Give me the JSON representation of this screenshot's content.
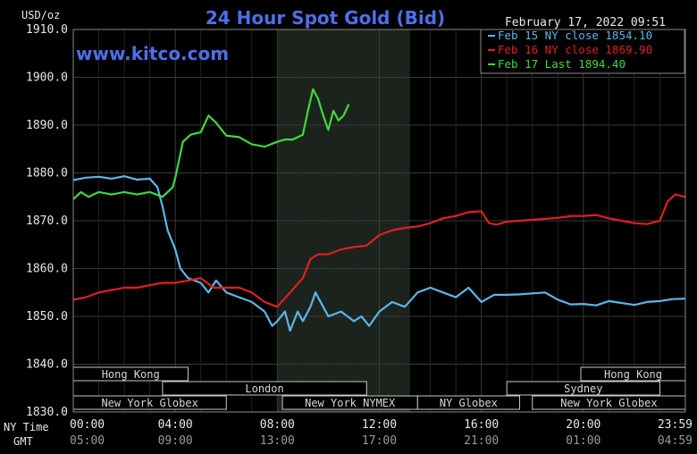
{
  "chart_data": {
    "type": "line",
    "title": "24 Hour Spot Gold (Bid)",
    "ylabel": "USD/oz",
    "timestamp": "February 17, 2022 09:51",
    "watermark": "www.kitco.com",
    "ylim": [
      1830,
      1910
    ],
    "yticks": [
      "1910.0",
      "1900.0",
      "1890.0",
      "1880.0",
      "1870.0",
      "1860.0",
      "1850.0",
      "1840.0",
      "1830.0"
    ],
    "xlim": [
      0,
      24
    ],
    "x_row_labels": [
      "NY Time",
      "GMT"
    ],
    "ny_time_ticks": [
      "00:00",
      "04:00",
      "08:00",
      "12:00",
      "16:00",
      "20:00",
      "23:59"
    ],
    "gmt_ticks": [
      "05:00",
      "09:00",
      "13:00",
      "17:00",
      "21:00",
      "01:00",
      "04:59"
    ],
    "shaded_region": [
      8.0,
      13.2
    ],
    "grid": true,
    "legend_placement": "top-right",
    "sessions": [
      {
        "label": "Hong Kong",
        "start": 0,
        "end": 4.5,
        "row": 0
      },
      {
        "label": "Hong Kong",
        "start": 19.9,
        "end": 24,
        "row": 0
      },
      {
        "label": "London",
        "start": 3.5,
        "end": 11.5,
        "row": 1
      },
      {
        "label": "Sydney",
        "start": 17.0,
        "end": 23.0,
        "row": 1
      },
      {
        "label": "New York Globex",
        "start": 0,
        "end": 6.0,
        "row": 2
      },
      {
        "label": "New York NYMEX",
        "start": 8.2,
        "end": 13.5,
        "row": 2
      },
      {
        "label": "NY Globex",
        "start": 13.5,
        "end": 17.5,
        "row": 2
      },
      {
        "label": "New York Globex",
        "start": 18.0,
        "end": 24,
        "row": 2
      }
    ],
    "series": [
      {
        "name": "Feb 15 NY close 1854.10",
        "color": "#5bb7e8",
        "x": [
          0,
          0.5,
          1,
          1.5,
          2,
          2.5,
          3,
          3.3,
          3.5,
          3.7,
          4,
          4.2,
          4.5,
          5,
          5.3,
          5.6,
          6,
          6.5,
          7,
          7.5,
          7.8,
          8,
          8.3,
          8.5,
          8.8,
          9,
          9.3,
          9.5,
          9.8,
          10,
          10.5,
          11,
          11.3,
          11.6,
          12,
          12.5,
          13,
          13.5,
          14,
          14.5,
          15,
          15.5,
          16,
          16.5,
          17,
          17.5,
          18,
          18.5,
          19,
          19.5,
          20,
          20.5,
          21,
          21.5,
          22,
          22.5,
          23,
          23.5,
          23.99
        ],
        "values": [
          1878.5,
          1879,
          1879.2,
          1878.8,
          1879.3,
          1878.6,
          1878.8,
          1877,
          1873,
          1868,
          1864,
          1860,
          1858,
          1857,
          1855,
          1857.5,
          1855,
          1854,
          1853,
          1851,
          1848,
          1849,
          1851,
          1847,
          1851,
          1849,
          1852,
          1855,
          1852,
          1850,
          1851,
          1849,
          1850,
          1848,
          1851,
          1853,
          1852,
          1855,
          1856,
          1855,
          1854,
          1856,
          1853,
          1854.5,
          1854.5,
          1854.6,
          1854.8,
          1855,
          1853.5,
          1852.5,
          1852.6,
          1852.3,
          1853.2,
          1852.8,
          1852.4,
          1853,
          1853.2,
          1853.6,
          1853.7
        ]
      },
      {
        "name": "Feb 16 NY close 1869.90",
        "color": "#e02020",
        "x": [
          0,
          0.5,
          1,
          1.5,
          2,
          2.5,
          3,
          3.5,
          4,
          4.5,
          5,
          5.5,
          6,
          6.5,
          7,
          7.5,
          8,
          8.5,
          9,
          9.3,
          9.6,
          10,
          10.5,
          11,
          11.5,
          12,
          12.5,
          13,
          13.5,
          14,
          14.5,
          15,
          15.5,
          16,
          16.3,
          16.6,
          17,
          17.5,
          18,
          18.5,
          19,
          19.5,
          20,
          20.5,
          21,
          21.5,
          22,
          22.5,
          23,
          23.3,
          23.6,
          23.99
        ],
        "values": [
          1853.5,
          1854,
          1855,
          1855.5,
          1856,
          1856,
          1856.5,
          1857,
          1857,
          1857.5,
          1858,
          1856,
          1856,
          1856,
          1855,
          1853,
          1852,
          1855,
          1858,
          1862,
          1863,
          1863,
          1864,
          1864.5,
          1864.8,
          1867,
          1868,
          1868.5,
          1868.8,
          1869.5,
          1870.5,
          1871,
          1871.8,
          1872,
          1869.5,
          1869.2,
          1869.8,
          1870,
          1870.2,
          1870.4,
          1870.6,
          1871,
          1871,
          1871.2,
          1870.5,
          1870,
          1869.5,
          1869.3,
          1870,
          1874,
          1875.5,
          1875
        ]
      },
      {
        "name": "Feb 17 Last 1894.40",
        "color": "#3fd93f",
        "x": [
          0,
          0.3,
          0.6,
          1,
          1.5,
          2,
          2.5,
          3,
          3.5,
          3.7,
          3.9,
          4,
          4.3,
          4.6,
          5,
          5.3,
          5.6,
          6,
          6.5,
          7,
          7.5,
          8,
          8.3,
          8.6,
          9,
          9.2,
          9.4,
          9.6,
          9.8,
          10,
          10.2,
          10.4,
          10.6,
          10.8
        ],
        "values": [
          1874.5,
          1876,
          1875,
          1876,
          1875.5,
          1876,
          1875.5,
          1876,
          1875,
          1876,
          1877,
          1879,
          1886.5,
          1888,
          1888.5,
          1892,
          1890.5,
          1887.8,
          1887.5,
          1886,
          1885.5,
          1886.5,
          1887,
          1887,
          1888,
          1893,
          1897.5,
          1895.5,
          1892,
          1889,
          1893,
          1891,
          1892,
          1894.4
        ]
      }
    ]
  }
}
